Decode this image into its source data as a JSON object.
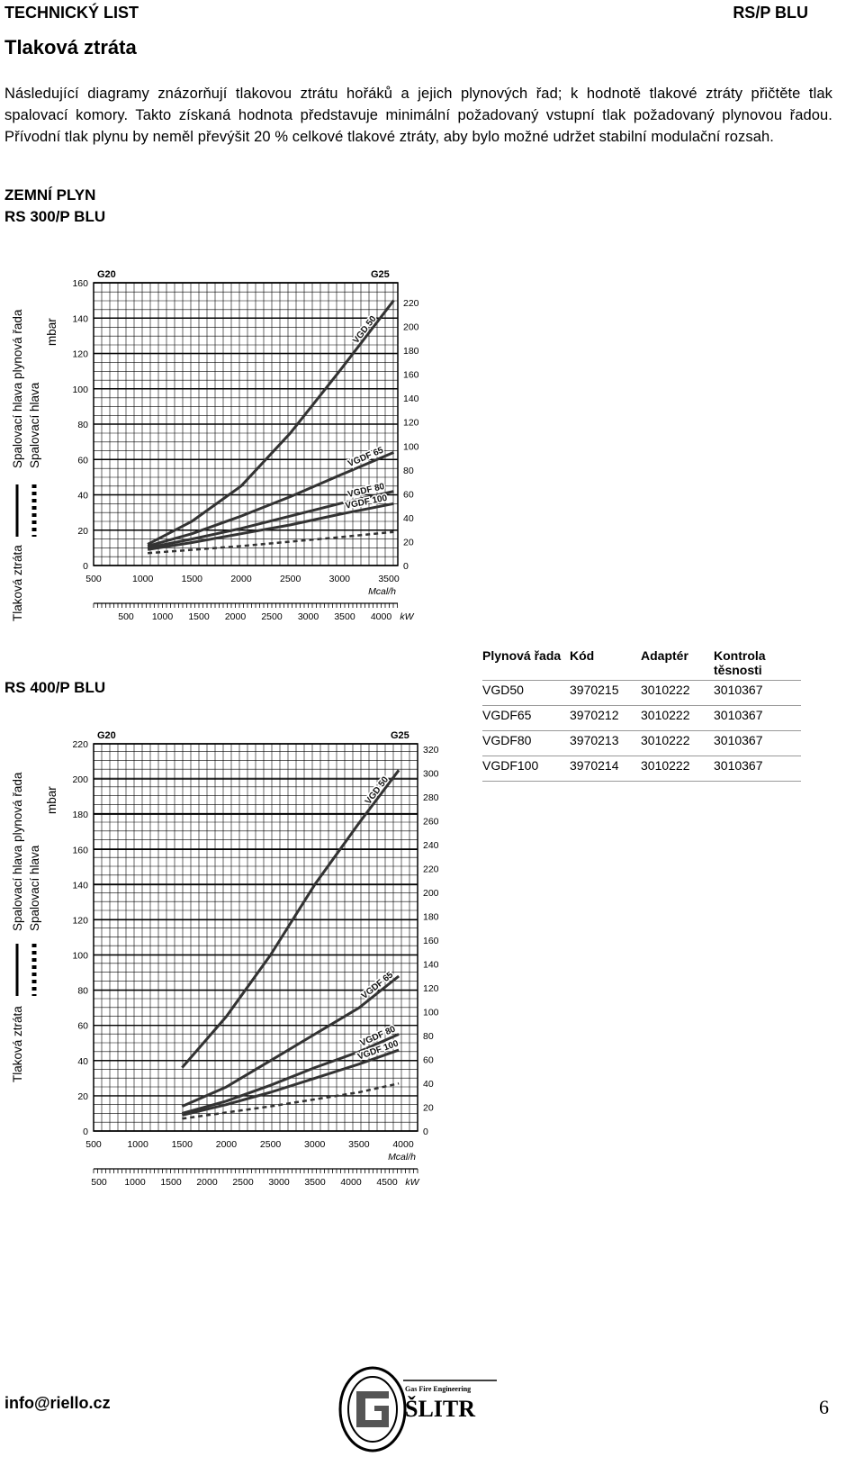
{
  "header": {
    "left": "TECHNICKÝ LIST",
    "right": "RS/P BLU"
  },
  "title": "Tlaková ztráta",
  "intro": "Následující diagramy znázorňují tlakovou ztrátu hořáků a jejich plynových řad; k hodnotě tlakové ztráty přičtěte tlak spalovací komory. Takto získaná hodnota představuje minimální požadovaný vstupní tlak požadovaný plynovou řadou. Přívodní tlak plynu by neměl převýšit 20 % celkové tlakové ztráty, aby bylo možné udržet stabilní modulační rozsah.",
  "gas_type": "ZEMNÍ PLYN",
  "side_labels": {
    "loss": "Tlaková ztráta",
    "head_train": "Spalovací hlava plynová řada",
    "head": "Spalovací hlava",
    "unit": "mbar"
  },
  "chart_data": [
    {
      "type": "line",
      "title": "RS 300/P BLU",
      "top_labels": [
        "G20",
        "G25"
      ],
      "x_unit_top": "Mcal/h",
      "x_unit_bottom": "kW",
      "y_left": {
        "min": 0,
        "max": 160,
        "ticks": [
          "0",
          "20",
          "40",
          "60",
          "80",
          "100",
          "120",
          "140",
          "160"
        ]
      },
      "y_right": {
        "min": 0,
        "max": 220,
        "ticks": [
          "0",
          "20",
          "40",
          "60",
          "80",
          "100",
          "120",
          "140",
          "160",
          "180",
          "200",
          "220"
        ]
      },
      "x_top": {
        "min": 500,
        "max": 3500,
        "ticks": [
          "500",
          "1000",
          "1500",
          "2000",
          "2500",
          "3000",
          "3500"
        ]
      },
      "x_bottom": {
        "ticks": [
          "500",
          "1000",
          "1500",
          "2000",
          "2500",
          "3000",
          "3500",
          "4000"
        ]
      },
      "series": [
        {
          "name": "VGD 50",
          "x": [
            1050,
            1500,
            2000,
            2500,
            3000,
            3550
          ],
          "y": [
            12,
            25,
            45,
            75,
            110,
            150
          ]
        },
        {
          "name": "VGDF 65",
          "x": [
            1050,
            1500,
            2000,
            2500,
            3000,
            3550
          ],
          "y": [
            11,
            18,
            28,
            39,
            51,
            64
          ]
        },
        {
          "name": "VGDF 80",
          "x": [
            1050,
            1500,
            2000,
            2500,
            3000,
            3550
          ],
          "y": [
            10,
            15,
            21,
            28,
            35,
            42
          ]
        },
        {
          "name": "VGDF 100",
          "x": [
            1050,
            1500,
            2000,
            2500,
            3000,
            3550
          ],
          "y": [
            9,
            13,
            18,
            23,
            29,
            35
          ]
        },
        {
          "name": "",
          "dashed": true,
          "x": [
            1050,
            2000,
            3000,
            3550
          ],
          "y": [
            7,
            11,
            16,
            19
          ]
        }
      ]
    },
    {
      "type": "line",
      "title": "RS 400/P BLU",
      "top_labels": [
        "G20",
        "G25"
      ],
      "x_unit_top": "Mcal/h",
      "x_unit_bottom": "kW",
      "y_left": {
        "min": 0,
        "max": 220,
        "ticks": [
          "0",
          "20",
          "40",
          "60",
          "80",
          "100",
          "120",
          "140",
          "160",
          "180",
          "200",
          "220"
        ]
      },
      "y_right": {
        "min": 0,
        "max": 320,
        "ticks": [
          "0",
          "20",
          "40",
          "60",
          "80",
          "100",
          "120",
          "140",
          "160",
          "180",
          "200",
          "220",
          "240",
          "260",
          "280",
          "300",
          "320"
        ]
      },
      "x_top": {
        "min": 500,
        "max": 4000,
        "ticks": [
          "500",
          "1000",
          "1500",
          "2000",
          "2500",
          "3000",
          "3500",
          "4000"
        ]
      },
      "x_bottom": {
        "ticks": [
          "500",
          "1000",
          "1500",
          "2000",
          "2500",
          "3000",
          "3500",
          "4000",
          "4500"
        ]
      },
      "series": [
        {
          "name": "VGD 50",
          "x": [
            1500,
            2000,
            2500,
            3000,
            3500,
            3950
          ],
          "y": [
            36,
            65,
            100,
            140,
            175,
            205
          ]
        },
        {
          "name": "VGDF 65",
          "x": [
            1500,
            2000,
            2500,
            3000,
            3500,
            3950
          ],
          "y": [
            14,
            25,
            40,
            55,
            70,
            88
          ]
        },
        {
          "name": "VGDF 80",
          "x": [
            1500,
            2000,
            2500,
            3000,
            3500,
            3950
          ],
          "y": [
            10,
            17,
            26,
            36,
            45,
            55
          ]
        },
        {
          "name": "VGDF 100",
          "x": [
            1500,
            2000,
            2500,
            3000,
            3500,
            3950
          ],
          "y": [
            9,
            15,
            22,
            30,
            38,
            46
          ]
        },
        {
          "name": "",
          "dashed": true,
          "x": [
            1500,
            2500,
            3500,
            3950
          ],
          "y": [
            7,
            14,
            22,
            27
          ]
        }
      ]
    }
  ],
  "table": {
    "headers": [
      "Plynová řada",
      "Kód",
      "Adaptér",
      "Kontrola těsnosti"
    ],
    "rows": [
      [
        "VGD50",
        "3970215",
        "3010222",
        "3010367"
      ],
      [
        "VGDF65",
        "3970212",
        "3010222",
        "3010367"
      ],
      [
        "VGDF80",
        "3970213",
        "3010222",
        "3010367"
      ],
      [
        "VGDF100",
        "3970214",
        "3010222",
        "3010367"
      ]
    ]
  },
  "logo": {
    "tagline": "Gas Fire Engineering",
    "name": "ŠLITR"
  },
  "footer": {
    "email": "info@riello.cz",
    "page": "6"
  }
}
